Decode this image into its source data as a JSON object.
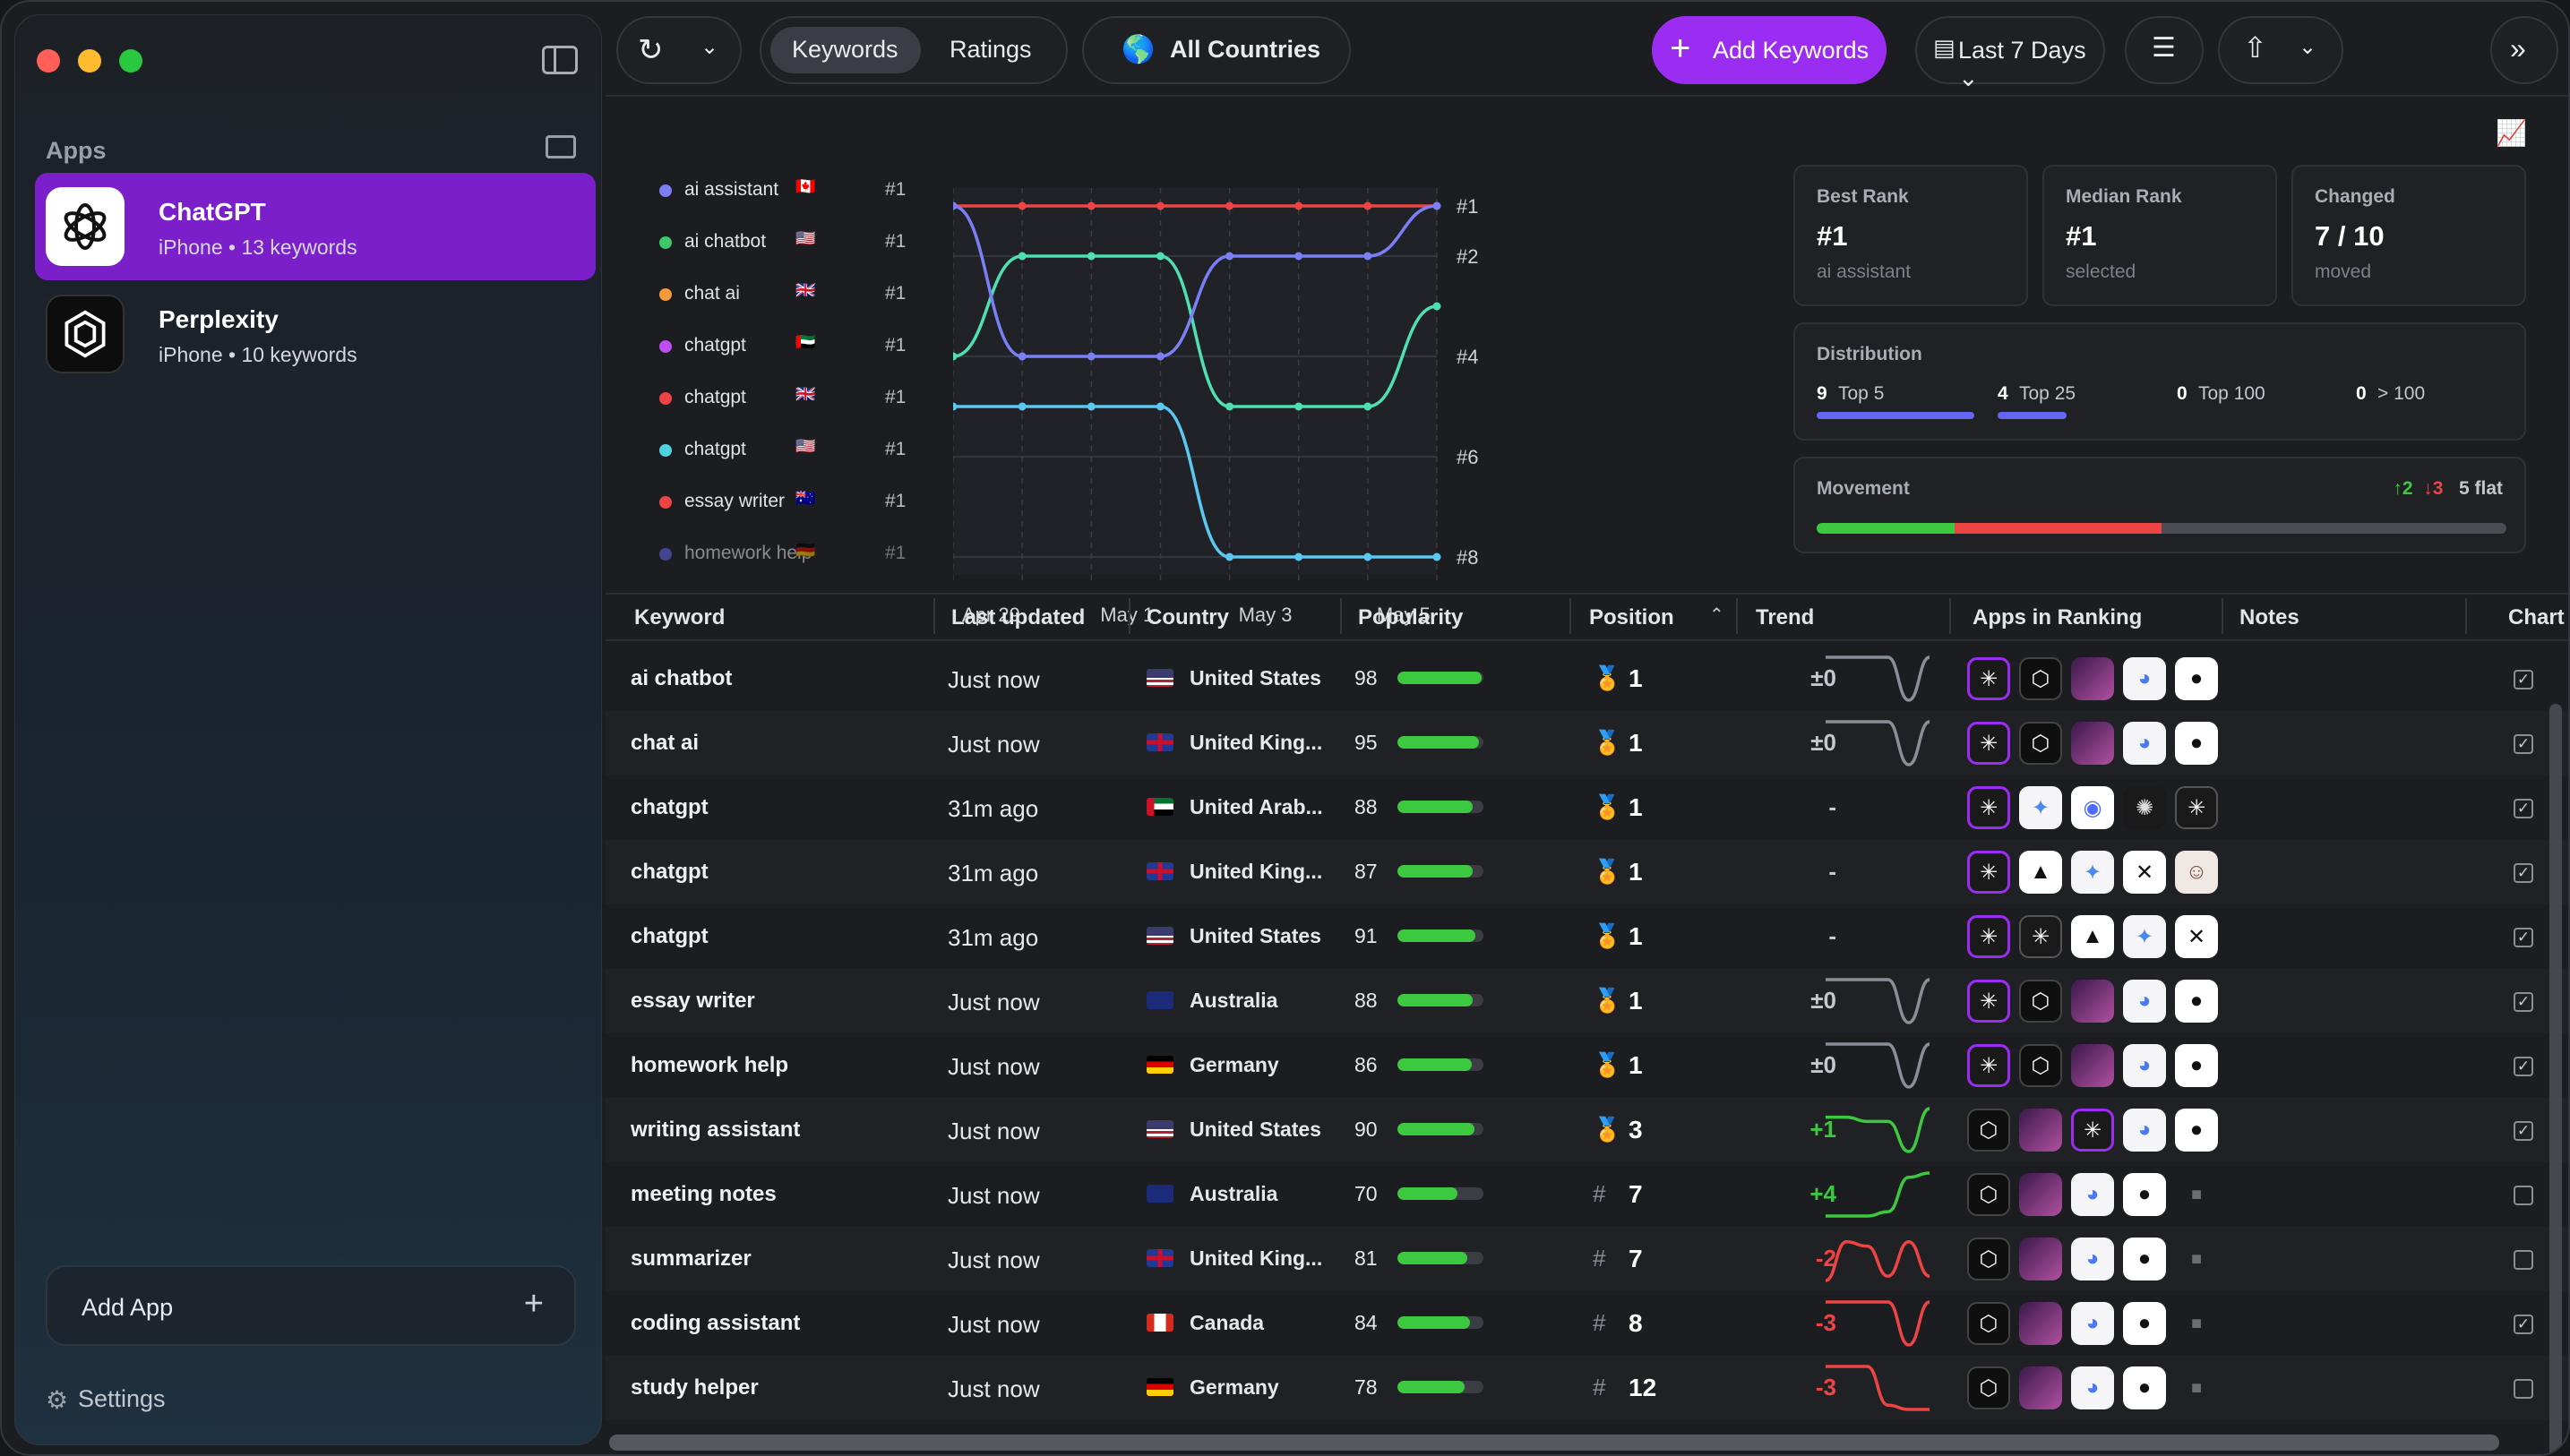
{
  "sidebar": {
    "apps_heading": "Apps",
    "apps": [
      {
        "name": "ChatGPT",
        "subtitle": "iPhone  •  13 keywords"
      },
      {
        "name": "Perplexity",
        "subtitle": "iPhone  •  10 keywords"
      }
    ],
    "add_app": "Add App",
    "settings": "Settings"
  },
  "toolbar": {
    "tabs": [
      "Keywords",
      "Ratings"
    ],
    "selected_tab": "Keywords",
    "country": "All Countries",
    "add_keywords": "Add Keywords",
    "date_range": "Last 7 Days ⌄"
  },
  "colors": {
    "accent": "#9b2df2",
    "selected_app": "#7a1fc9",
    "up": "#3dc93f",
    "down": "#ef4444"
  },
  "legend": [
    {
      "name": "ai assistant",
      "flag": "🇨🇦",
      "rank": "#1",
      "color": "#7b7ff5"
    },
    {
      "name": "ai chatbot",
      "flag": "🇺🇸",
      "rank": "#1",
      "color": "#3dc96b"
    },
    {
      "name": "chat ai",
      "flag": "🇬🇧",
      "rank": "#1",
      "color": "#f59a3b"
    },
    {
      "name": "chatgpt",
      "flag": "🇦🇪",
      "rank": "#1",
      "color": "#c04df0"
    },
    {
      "name": "chatgpt",
      "flag": "🇬🇧",
      "rank": "#1",
      "color": "#ef4444"
    },
    {
      "name": "chatgpt",
      "flag": "🇺🇸",
      "rank": "#1",
      "color": "#4fd1e0"
    },
    {
      "name": "essay writer",
      "flag": "🇦🇺",
      "rank": "#1",
      "color": "#ef4444"
    },
    {
      "name": "homework help",
      "flag": "🇩🇪",
      "rank": "#1",
      "color": "#6366f1"
    }
  ],
  "chart_data": {
    "type": "line",
    "x": [
      "Apr 29",
      "Apr 30",
      "May 1",
      "May 2",
      "May 3",
      "May 4",
      "May 5",
      "May 6"
    ],
    "x_tick_labels": [
      "Apr 29",
      "May 1",
      "May 3",
      "May 5"
    ],
    "y_tick_labels": [
      "#1",
      "#2",
      "#4",
      "#6",
      "#8"
    ],
    "ylim": [
      1,
      8
    ],
    "y_inverted": true,
    "grid": true,
    "series": [
      {
        "color": "#ef4444",
        "values": [
          1,
          1,
          1,
          1,
          1,
          1,
          1,
          1
        ]
      },
      {
        "color": "#4ee0b0",
        "values": [
          4,
          2,
          2,
          2,
          5,
          5,
          5,
          3
        ]
      },
      {
        "color": "#7b7ff5",
        "values": [
          1,
          4,
          4,
          4,
          2,
          2,
          2,
          1
        ]
      },
      {
        "color": "#5ac8f0",
        "values": [
          5,
          5,
          5,
          5,
          8,
          8,
          8,
          8
        ]
      }
    ]
  },
  "stats": {
    "best": {
      "label": "Best Rank",
      "value": "#1",
      "sub": "ai assistant"
    },
    "median": {
      "label": "Median Rank",
      "value": "#1",
      "sub": "selected"
    },
    "changed": {
      "label": "Changed",
      "value": "7 / 10",
      "sub": "moved"
    }
  },
  "distribution": {
    "label": "Distribution",
    "buckets": [
      {
        "count": "9",
        "label": "Top 5",
        "fill": 1.0
      },
      {
        "count": "4",
        "label": "Top 25",
        "fill": 0.44
      },
      {
        "count": "0",
        "label": "Top 100",
        "fill": 0
      },
      {
        "count": "0",
        "label": "> 100",
        "fill": 0
      }
    ]
  },
  "movement": {
    "label": "Movement",
    "up": "↑2",
    "down": "↓3",
    "flat": "5 flat",
    "up_fraction": 0.2,
    "down_fraction": 0.3
  },
  "table": {
    "columns": [
      "Keyword",
      "Last updated",
      "Country",
      "Popularity",
      "Position",
      "Trend",
      "Apps in Ranking",
      "Notes",
      "Chart"
    ],
    "sort_column": "Position",
    "rows": [
      {
        "keyword": "ai chatbot",
        "updated": "Just now",
        "flag": "us",
        "country": "United States",
        "popularity": "98",
        "pop_fill": 0.98,
        "rank_icon": "medal",
        "position": "1",
        "trend": "±0",
        "trend_dir": "flat",
        "spark": [
          0,
          0,
          0,
          0,
          1,
          0
        ],
        "apps": [
          "chatgpt-sel",
          "perplexity",
          "purple-art",
          "copilot",
          "github"
        ],
        "checked": true
      },
      {
        "keyword": "chat ai",
        "updated": "Just now",
        "flag": "gb",
        "country": "United King...",
        "popularity": "95",
        "pop_fill": 0.95,
        "rank_icon": "medal",
        "position": "1",
        "trend": "±0",
        "trend_dir": "flat",
        "spark": [
          0,
          0,
          0,
          0,
          1,
          0
        ],
        "apps": [
          "chatgpt-sel",
          "perplexity",
          "purple-art",
          "copilot",
          "github"
        ],
        "checked": true
      },
      {
        "keyword": "chatgpt",
        "updated": "31m ago",
        "flag": "ae",
        "country": "United Arab...",
        "popularity": "88",
        "pop_fill": 0.88,
        "rank_icon": "medal",
        "position": "1",
        "trend": "-",
        "trend_dir": "none",
        "spark": [],
        "apps": [
          "chatgpt-sel",
          "gemini",
          "deepseek",
          "openai-dark",
          "chatgpt-badge"
        ],
        "checked": true
      },
      {
        "keyword": "chatgpt",
        "updated": "31m ago",
        "flag": "gb",
        "country": "United King...",
        "popularity": "87",
        "pop_fill": 0.87,
        "rank_icon": "medal",
        "position": "1",
        "trend": "-",
        "trend_dir": "none",
        "spark": [],
        "apps": [
          "chatgpt-sel",
          "triangle",
          "gemini",
          "grok",
          "avatar"
        ],
        "checked": true
      },
      {
        "keyword": "chatgpt",
        "updated": "31m ago",
        "flag": "us",
        "country": "United States",
        "popularity": "91",
        "pop_fill": 0.91,
        "rank_icon": "medal",
        "position": "1",
        "trend": "-",
        "trend_dir": "none",
        "spark": [],
        "apps": [
          "chatgpt-sel",
          "chatgpt-badge",
          "triangle",
          "gemini",
          "grok"
        ],
        "checked": true
      },
      {
        "keyword": "essay writer",
        "updated": "Just now",
        "flag": "au",
        "country": "Australia",
        "popularity": "88",
        "pop_fill": 0.88,
        "rank_icon": "medal",
        "position": "1",
        "trend": "±0",
        "trend_dir": "flat",
        "spark": [
          0,
          0,
          0,
          0,
          1,
          0
        ],
        "apps": [
          "chatgpt-sel",
          "perplexity",
          "purple-art",
          "copilot",
          "github"
        ],
        "checked": true
      },
      {
        "keyword": "homework help",
        "updated": "Just now",
        "flag": "de",
        "country": "Germany",
        "popularity": "86",
        "pop_fill": 0.86,
        "rank_icon": "medal",
        "position": "1",
        "trend": "±0",
        "trend_dir": "flat",
        "spark": [
          0,
          0,
          0,
          0,
          1,
          0
        ],
        "apps": [
          "chatgpt-sel",
          "perplexity",
          "purple-art",
          "copilot",
          "github"
        ],
        "checked": true
      },
      {
        "keyword": "writing assistant",
        "updated": "Just now",
        "flag": "us",
        "country": "United States",
        "popularity": "90",
        "pop_fill": 0.9,
        "rank_icon": "medal-bronze",
        "position": "3",
        "trend": "+1",
        "trend_dir": "up",
        "spark": [
          0.2,
          0.2,
          0.3,
          0.3,
          1,
          0
        ],
        "apps": [
          "perplexity",
          "purple-art",
          "chatgpt-sel",
          "copilot",
          "github"
        ],
        "checked": true
      },
      {
        "keyword": "meeting notes",
        "updated": "Just now",
        "flag": "au",
        "country": "Australia",
        "popularity": "70",
        "pop_fill": 0.7,
        "rank_icon": "hash",
        "position": "7",
        "trend": "+4",
        "trend_dir": "up",
        "spark": [
          1,
          1,
          1,
          0.9,
          0.1,
          0
        ],
        "apps": [
          "perplexity",
          "purple-art",
          "copilot",
          "github",
          "placeholder"
        ],
        "checked": false
      },
      {
        "keyword": "summarizer",
        "updated": "Just now",
        "flag": "gb",
        "country": "United King...",
        "popularity": "81",
        "pop_fill": 0.81,
        "rank_icon": "hash",
        "position": "7",
        "trend": "-2",
        "trend_dir": "down",
        "spark": [
          1,
          0.1,
          0.2,
          0.9,
          0.1,
          0.9
        ],
        "apps": [
          "perplexity",
          "purple-art",
          "copilot",
          "github",
          "placeholder"
        ],
        "checked": false
      },
      {
        "keyword": "coding assistant",
        "updated": "Just now",
        "flag": "ca",
        "country": "Canada",
        "popularity": "84",
        "pop_fill": 0.84,
        "rank_icon": "hash",
        "position": "8",
        "trend": "-3",
        "trend_dir": "down",
        "spark": [
          0,
          0,
          0,
          0,
          1,
          0
        ],
        "apps": [
          "perplexity",
          "purple-art",
          "copilot",
          "github",
          "placeholder"
        ],
        "checked": true
      },
      {
        "keyword": "study helper",
        "updated": "Just now",
        "flag": "de",
        "country": "Germany",
        "popularity": "78",
        "pop_fill": 0.78,
        "rank_icon": "hash",
        "position": "12",
        "trend": "-3",
        "trend_dir": "down",
        "spark": [
          0,
          0,
          0,
          0.9,
          1,
          1
        ],
        "apps": [
          "perplexity",
          "purple-art",
          "copilot",
          "github",
          "placeholder"
        ],
        "checked": false
      }
    ]
  }
}
